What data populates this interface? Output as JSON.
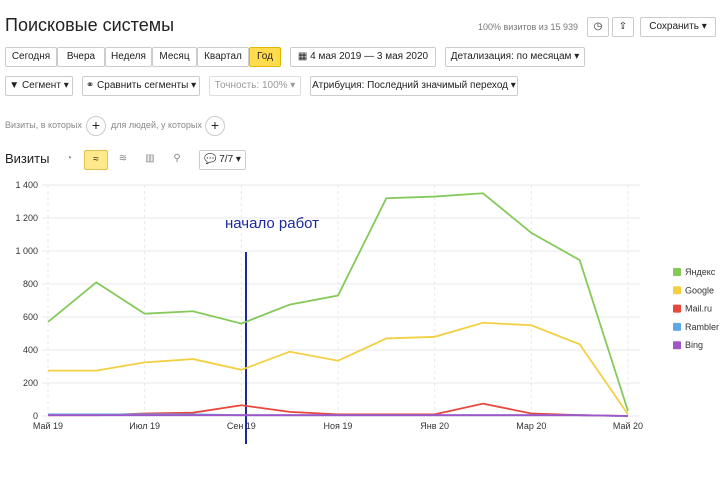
{
  "header": {
    "title": "Поисковые системы",
    "visits_share": "100% визитов из 15 939",
    "save": "Сохранить"
  },
  "periods": [
    "Сегодня",
    "Вчера",
    "Неделя",
    "Месяц",
    "Квартал",
    "Год"
  ],
  "date_range": "4 мая 2019 — 3 мая 2020",
  "detail": "Детализация: по месяцам",
  "filters": {
    "segment": "Сегмент",
    "compare": "Сравнить сегменты",
    "accuracy": "Точность: 100%",
    "attribution": "Атрибуция: Последний значимый переход"
  },
  "conditions": {
    "visits_where": "Визиты, в которых",
    "people_where": "для людей, у которых"
  },
  "metric": {
    "label": "Визиты",
    "series_count": "7/7"
  },
  "chart_data": {
    "type": "line",
    "annotation": "начало работ",
    "categories": [
      "Май 19",
      null,
      "Июл 19",
      null,
      "Сен 19",
      null,
      "Ноя 19",
      null,
      "Янв 20",
      null,
      "Мар 20",
      null,
      "Май 20"
    ],
    "series": [
      {
        "name": "Яндекс",
        "color": "#86c95b",
        "values": [
          570,
          810,
          620,
          635,
          560,
          675,
          730,
          1320,
          1330,
          1350,
          1110,
          945,
          30
        ]
      },
      {
        "name": "Google",
        "color": "#f3d043",
        "values": [
          275,
          275,
          325,
          345,
          280,
          390,
          335,
          470,
          480,
          565,
          550,
          435,
          10
        ]
      },
      {
        "name": "Mail.ru",
        "color": "#e8473b",
        "values": [
          5,
          5,
          15,
          20,
          65,
          25,
          10,
          10,
          10,
          75,
          15,
          5,
          0
        ]
      },
      {
        "name": "Rambler",
        "color": "#5fa8e8",
        "values": [
          10,
          10,
          10,
          10,
          5,
          5,
          5,
          5,
          5,
          5,
          5,
          5,
          0
        ]
      },
      {
        "name": "Bing",
        "color": "#a056c8",
        "values": [
          5,
          5,
          5,
          5,
          5,
          5,
          5,
          5,
          5,
          5,
          5,
          5,
          0
        ]
      }
    ],
    "ylim": [
      0,
      1400
    ],
    "yticks": [
      0,
      200,
      400,
      600,
      800,
      {
        "value": 1000,
        "label": "1 000"
      },
      {
        "value": 1200,
        "label": "1 200"
      },
      {
        "value": 1400,
        "label": "1 400"
      }
    ],
    "grid": true,
    "legend": "right"
  }
}
